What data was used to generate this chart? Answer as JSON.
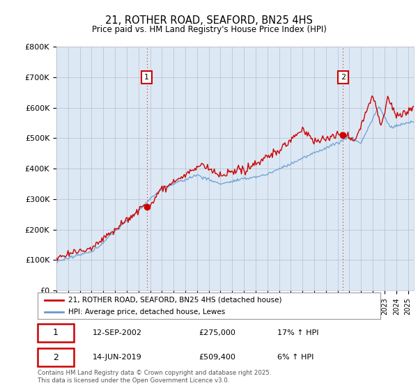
{
  "title": "21, ROTHER ROAD, SEAFORD, BN25 4HS",
  "subtitle": "Price paid vs. HM Land Registry's House Price Index (HPI)",
  "ylabel_ticks": [
    "£0",
    "£100K",
    "£200K",
    "£300K",
    "£400K",
    "£500K",
    "£600K",
    "£700K",
    "£800K"
  ],
  "ytick_values": [
    0,
    100000,
    200000,
    300000,
    400000,
    500000,
    600000,
    700000,
    800000
  ],
  "ylim": [
    0,
    800000
  ],
  "xlim_start": 1995.0,
  "xlim_end": 2025.5,
  "legend_line1": "21, ROTHER ROAD, SEAFORD, BN25 4HS (detached house)",
  "legend_line2": "HPI: Average price, detached house, Lewes",
  "red_color": "#cc0000",
  "blue_color": "#6699cc",
  "plot_bg_color": "#dce9f5",
  "marker1_date": "12-SEP-2002",
  "marker1_price": 275000,
  "marker1_hpi": "17% ↑ HPI",
  "marker1_x": 2002.71,
  "marker2_date": "14-JUN-2019",
  "marker2_price": 509400,
  "marker2_hpi": "6% ↑ HPI",
  "marker2_x": 2019.45,
  "footnote": "Contains HM Land Registry data © Crown copyright and database right 2025.\nThis data is licensed under the Open Government Licence v3.0.",
  "background_color": "#ffffff",
  "grid_color": "#bbbbcc"
}
